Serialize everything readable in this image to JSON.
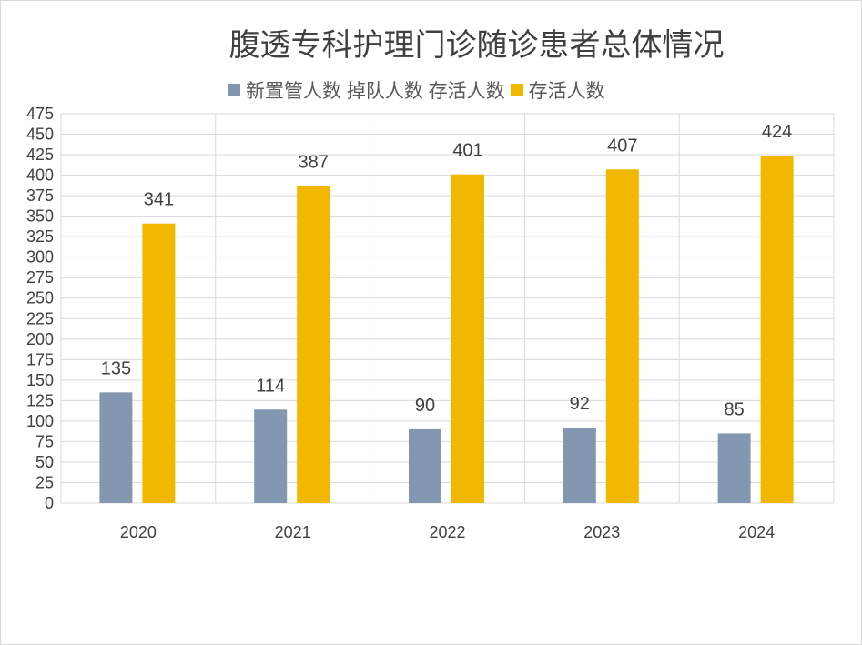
{
  "chart_data": {
    "type": "bar",
    "title": "腹透专科护理门诊随诊患者总体情况",
    "categories": [
      "2020",
      "2021",
      "2022",
      "2023",
      "2024"
    ],
    "series": [
      {
        "name": "新置管人数 掉队人数 存活人数",
        "color": "#8497b0",
        "values": [
          135,
          114,
          90,
          92,
          85
        ]
      },
      {
        "name": "存活人数",
        "color": "#f2b800",
        "values": [
          341,
          387,
          401,
          407,
          424
        ]
      }
    ],
    "ylim": [
      0,
      475
    ],
    "ytick_step": 25,
    "xlabel": "",
    "ylabel": "",
    "grid": true,
    "legend": "top"
  }
}
